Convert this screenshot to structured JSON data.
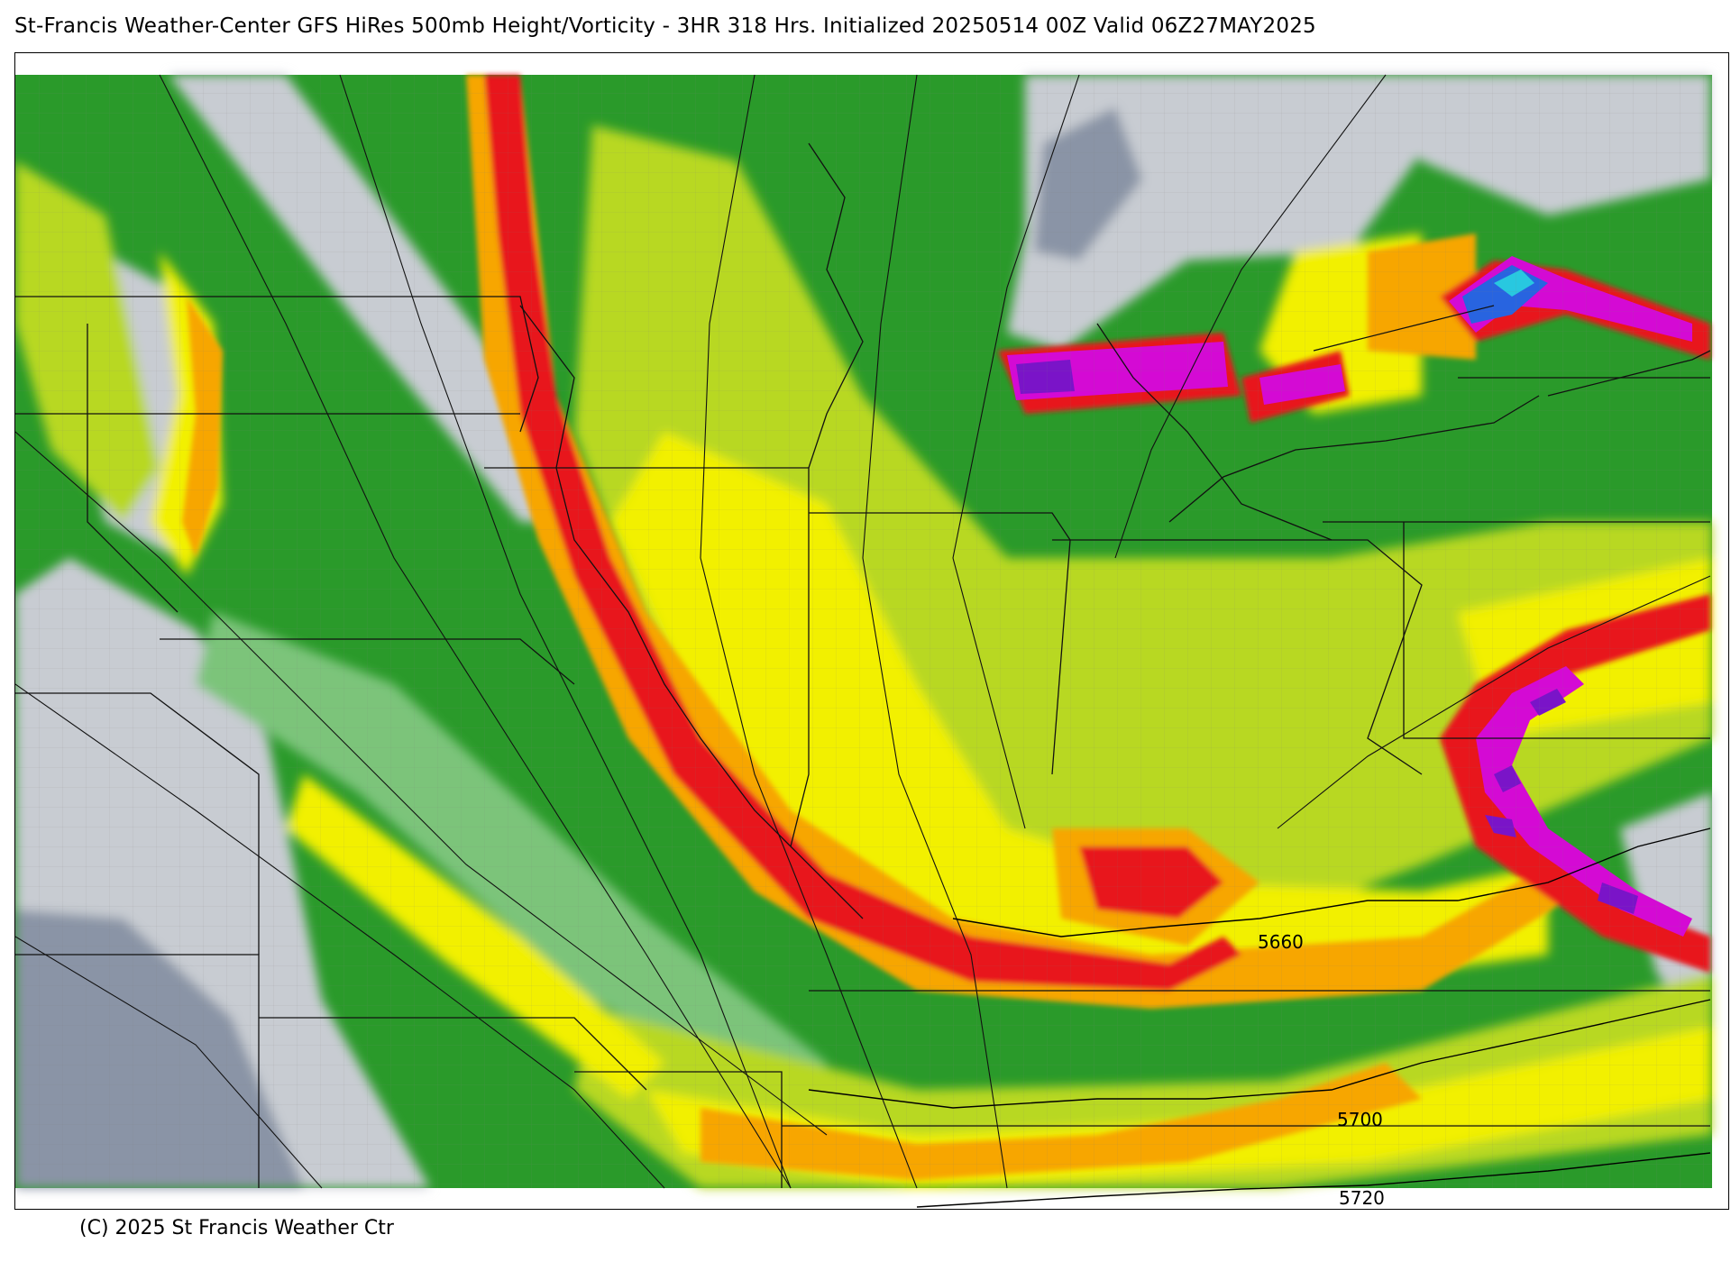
{
  "header": {
    "title": "St-Francis Weather-Center GFS HiRes 500mb Height/Vorticity - 3HR  318 Hrs.  Initialized 20250514 00Z Valid 06Z27MAY2025"
  },
  "map": {
    "contours": [
      {
        "value": "5660"
      },
      {
        "value": "5700"
      },
      {
        "value": "5720"
      }
    ],
    "colors": {
      "lowest": "#8a94a6",
      "gray": "#c8ccd2",
      "light_green": "#7cc47a",
      "green": "#2a9a2a",
      "dark_green": "#0f7a0f",
      "yellow_green": "#b8d820",
      "yellow": "#f2f000",
      "orange": "#f7a600",
      "red": "#e8141c",
      "magenta": "#d40ad4",
      "purple": "#7a14c8",
      "blue": "#2864e0",
      "cyan": "#28c8e0"
    }
  },
  "footer": {
    "copyright": "(C) 2025 St Francis Weather Ctr"
  }
}
